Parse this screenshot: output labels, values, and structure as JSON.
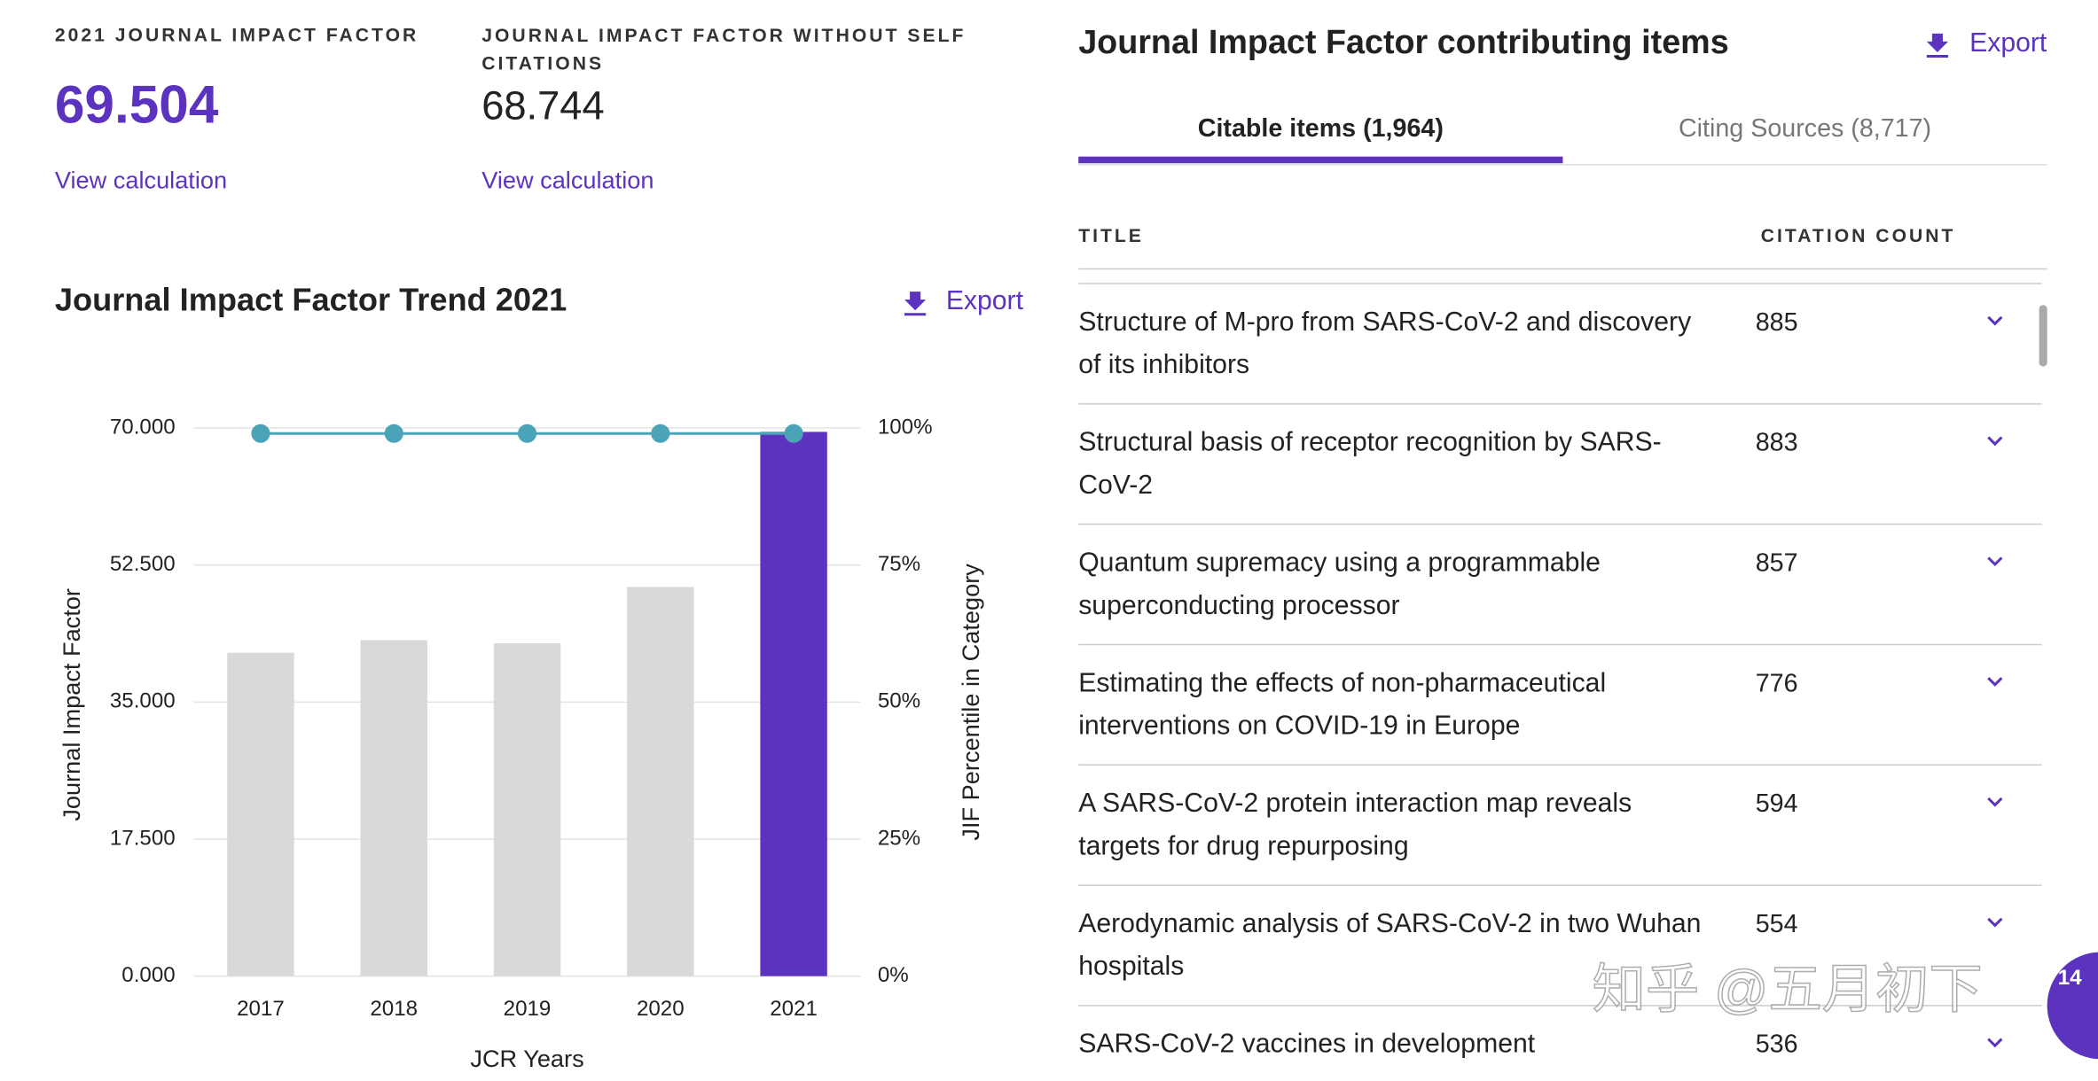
{
  "metrics": [
    {
      "label": "2021 JOURNAL IMPACT FACTOR",
      "value": 69.504,
      "link": "View calculation"
    },
    {
      "label": "JOURNAL IMPACT FACTOR WITHOUT SELF CITATIONS",
      "value": 68.744,
      "link": "View calculation"
    }
  ],
  "chart_data": {
    "type": "bar",
    "title": "Journal Impact Factor Trend 2021",
    "export": "Export",
    "categories": [
      "2017",
      "2018",
      "2019",
      "2020",
      "2021"
    ],
    "series": [
      {
        "type": "bar",
        "colors": [
          "#d9d9d9",
          "#d9d9d9",
          "#d9d9d9",
          "#d9d9d9",
          "#5c33be"
        ],
        "values": [
          41.3,
          42.9,
          42.5,
          49.7,
          69.504
        ]
      },
      {
        "type": "line",
        "axis": "y2",
        "color": "#4ba3b8",
        "values": [
          99,
          99,
          99,
          99,
          99
        ]
      }
    ],
    "ylim": [
      0,
      70
    ],
    "yticks": [
      {
        "value": 0,
        "label": "0.000"
      },
      {
        "value": 17.5,
        "label": "17.500"
      },
      {
        "value": 35,
        "label": "35.000"
      },
      {
        "value": 52.5,
        "label": "52.500"
      },
      {
        "value": 70,
        "label": "70.000"
      }
    ],
    "y2lim": [
      0,
      100
    ],
    "y2ticks": [
      {
        "value": 0,
        "label": "0%"
      },
      {
        "value": 25,
        "label": "25%"
      },
      {
        "value": 50,
        "label": "50%"
      },
      {
        "value": 75,
        "label": "75%"
      },
      {
        "value": 100,
        "label": "100%"
      }
    ],
    "ylabel": "Journal Impact Factor",
    "y2label": "JIF Percentile in Category",
    "xlabel": "JCR Years",
    "grid": true
  },
  "contributing": {
    "title": "Journal Impact Factor contributing items",
    "export": "Export",
    "tabs": [
      {
        "label": "Citable items (1,964)",
        "active": true
      },
      {
        "label": "Citing Sources (8,717)",
        "active": false
      }
    ],
    "columns": [
      "TITLE",
      "CITATION COUNT"
    ],
    "rows": [
      {
        "title": "Structure of M-pro from SARS-CoV-2 and discovery of its inhibitors",
        "citations": 885
      },
      {
        "title": "Structural basis of receptor recognition by SARS-CoV-2",
        "citations": 883
      },
      {
        "title": "Quantum supremacy using a programmable superconducting processor",
        "citations": 857
      },
      {
        "title": "Estimating the effects of non-pharmaceutical interventions on COVID-19 in Europe",
        "citations": 776
      },
      {
        "title": "A SARS-CoV-2 protein interaction map reveals targets for drug repurposing",
        "citations": 594
      },
      {
        "title": "Aerodynamic analysis of SARS-CoV-2 in two Wuhan hospitals",
        "citations": 554
      },
      {
        "title": "SARS-CoV-2 vaccines in development",
        "citations": 536
      }
    ]
  },
  "watermark": "知乎 @五月初下",
  "badge": 14
}
